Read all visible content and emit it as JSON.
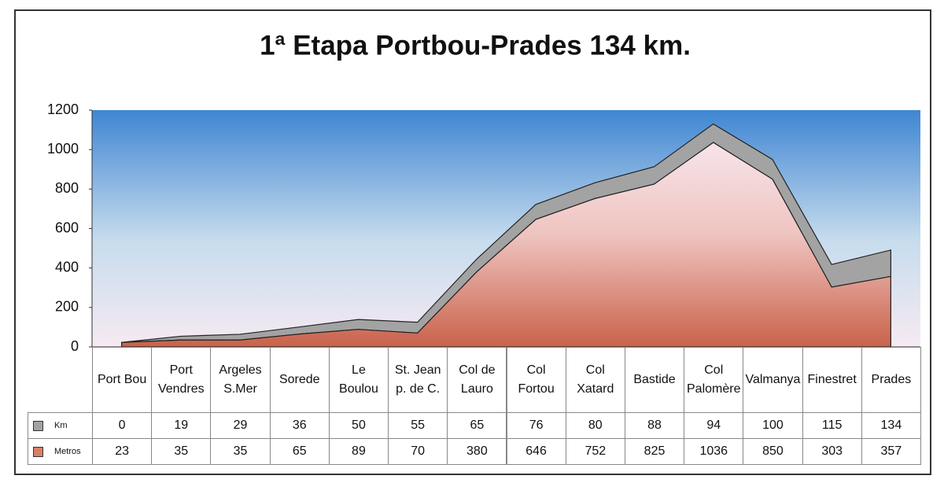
{
  "chart_data": {
    "type": "stacked-area",
    "title": "1ª Etapa Portbou-Prades 134 km.",
    "categories": [
      "Port Bou",
      "Port Vendres",
      "Argeles S.Mer",
      "Sorede",
      "Le Boulou",
      "St. Jean p. de C.",
      "Col de Lauro",
      "Col Fortou",
      "Col Xatard",
      "Bastide",
      "Col Palomère",
      "Valmanya",
      "Finestret",
      "Prades"
    ],
    "series": [
      {
        "name": "Km",
        "color": "#a3a3a3",
        "values": [
          0,
          19,
          29,
          36,
          50,
          55,
          65,
          76,
          80,
          88,
          94,
          100,
          115,
          134
        ]
      },
      {
        "name": "Metros",
        "color": "#d98068",
        "values": [
          23,
          35,
          35,
          65,
          89,
          70,
          380,
          646,
          752,
          825,
          1036,
          850,
          303,
          357
        ]
      }
    ],
    "ylim": [
      0,
      1200
    ],
    "yticks": [
      0,
      200,
      400,
      600,
      800,
      1000,
      1200
    ]
  }
}
